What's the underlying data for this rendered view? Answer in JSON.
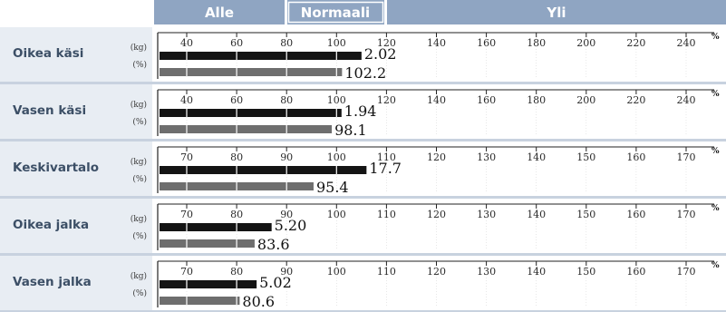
{
  "header": {
    "alle": "Alle",
    "normaali": "Normaali",
    "yli": "Yli"
  },
  "chart_data": {
    "type": "bar",
    "unit_labels": {
      "kg": "(kg)",
      "pct": "(%)"
    },
    "percent_sign": "%",
    "rows": [
      {
        "label": "Oikea käsi",
        "ticks": [
          40,
          60,
          80,
          100,
          120,
          140,
          160,
          180,
          200,
          220,
          240
        ],
        "kg": {
          "value": 2.02,
          "label": "2.02",
          "bar_level_on_axis": 110
        },
        "pct": {
          "value": 102.2,
          "label": "102.2"
        }
      },
      {
        "label": "Vasen käsi",
        "ticks": [
          40,
          60,
          80,
          100,
          120,
          140,
          160,
          180,
          200,
          220,
          240
        ],
        "kg": {
          "value": 1.94,
          "label": "1.94",
          "bar_level_on_axis": 102
        },
        "pct": {
          "value": 98.1,
          "label": "98.1"
        }
      },
      {
        "label": "Keskivartalo",
        "ticks": [
          70,
          80,
          90,
          100,
          110,
          120,
          130,
          140,
          150,
          160,
          170
        ],
        "kg": {
          "value": 17.7,
          "label": "17.7",
          "bar_level_on_axis": 106
        },
        "pct": {
          "value": 95.4,
          "label": "95.4"
        }
      },
      {
        "label": "Oikea jalka",
        "ticks": [
          70,
          80,
          90,
          100,
          110,
          120,
          130,
          140,
          150,
          160,
          170
        ],
        "kg": {
          "value": 5.2,
          "label": "5.20",
          "bar_level_on_axis": 87
        },
        "pct": {
          "value": 83.6,
          "label": "83.6"
        }
      },
      {
        "label": "Vasen jalka",
        "ticks": [
          70,
          80,
          90,
          100,
          110,
          120,
          130,
          140,
          150,
          160,
          170
        ],
        "kg": {
          "value": 5.02,
          "label": "5.02",
          "bar_level_on_axis": 84
        },
        "pct": {
          "value": 80.6,
          "label": "80.6"
        }
      }
    ]
  },
  "colors": {
    "header_bg": "#8fa5c2",
    "header_text": "#ffffff",
    "label_bg": "#e8edf3",
    "divider": "#c8d2df",
    "kg_bar": "#141414",
    "pct_bar": "#6e6e6e",
    "row_label_text": "#3c4f66"
  }
}
